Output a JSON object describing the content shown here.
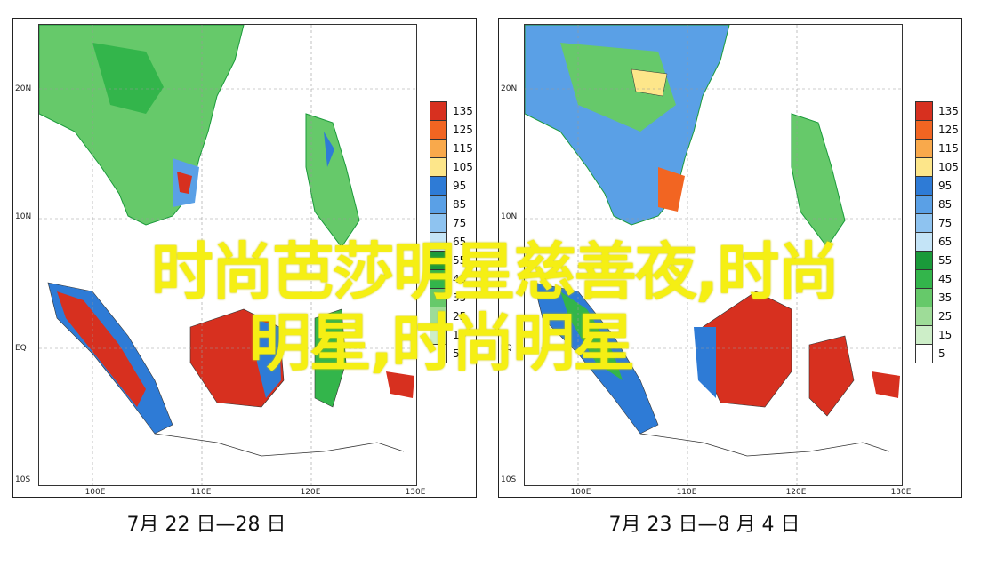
{
  "overlay": {
    "line1": "时尚芭莎明星慈善夜,时尚",
    "line2": "明星,时尚明星"
  },
  "panels": [
    {
      "caption": "7月 22 日—28 日",
      "lat_labels": [
        "20N",
        "10N",
        "EQ",
        "10S"
      ],
      "lon_labels": [
        "100E",
        "110E",
        "120E",
        "130E"
      ]
    },
    {
      "caption": "7月 23 日—8 月 4 日",
      "lat_labels": [
        "20N",
        "10N",
        "EQ",
        "10S"
      ],
      "lon_labels": [
        "100E",
        "110E",
        "120E",
        "130E"
      ]
    }
  ],
  "colorbar": {
    "labels": [
      "135",
      "125",
      "115",
      "105",
      "95",
      "85",
      "75",
      "65",
      "55",
      "45",
      "35",
      "25",
      "15",
      "5"
    ],
    "colors": [
      "#d7301f",
      "#f26522",
      "#f9a94b",
      "#fde68a",
      "#2e7bd6",
      "#5aa0e6",
      "#8ec3f0",
      "#c4e4f7",
      "#1a9a3a",
      "#33b54b",
      "#66c96a",
      "#9edc98",
      "#cdeec8",
      "#ffffff"
    ]
  }
}
